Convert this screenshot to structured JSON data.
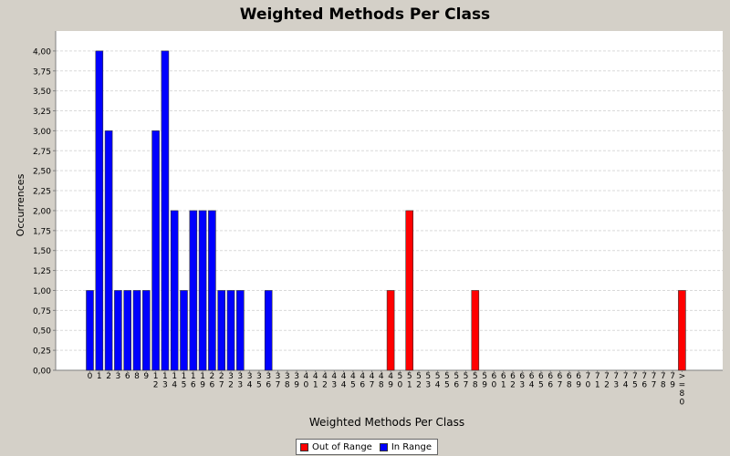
{
  "chart_data": {
    "type": "bar",
    "title": "Weighted Methods Per Class",
    "xlabel": "Weighted Methods Per Class",
    "ylabel": "Occurrences",
    "ylim": [
      0,
      4.25
    ],
    "yticks": [
      "0,00",
      "0,25",
      "0,50",
      "0,75",
      "1,00",
      "1,25",
      "1,50",
      "1,75",
      "2,00",
      "2,25",
      "2,50",
      "2,75",
      "3,00",
      "3,25",
      "3,50",
      "3,75",
      "4,00"
    ],
    "grid": true,
    "legend_position": "bottom",
    "categories": [
      "0",
      "1",
      "2",
      "3",
      "6",
      "8",
      "9",
      "12",
      "13",
      "14",
      "15",
      "16",
      "19",
      "26",
      "27",
      "32",
      "33",
      "34",
      "35",
      "36",
      "37",
      "38",
      "39",
      "40",
      "41",
      "42",
      "43",
      "44",
      "45",
      "46",
      "47",
      "48",
      "49",
      "50",
      "51",
      "52",
      "53",
      "54",
      "55",
      "56",
      "57",
      "58",
      "59",
      "60",
      "61",
      "62",
      "63",
      "64",
      "65",
      "66",
      "67",
      "68",
      "69",
      "70",
      "71",
      "72",
      "73",
      "74",
      "75",
      "76",
      "77",
      "78",
      "79",
      ">=80"
    ],
    "series": [
      {
        "name": "Out of Range",
        "color": "#ff0000",
        "values": [
          0,
          0,
          0,
          0,
          0,
          0,
          0,
          0,
          0,
          0,
          0,
          0,
          0,
          0,
          0,
          0,
          0,
          0,
          0,
          0,
          0,
          0,
          0,
          0,
          0,
          0,
          0,
          0,
          0,
          0,
          0,
          0,
          1,
          0,
          2,
          0,
          0,
          0,
          0,
          0,
          0,
          1,
          0,
          0,
          0,
          0,
          0,
          0,
          0,
          0,
          0,
          0,
          0,
          0,
          0,
          0,
          0,
          0,
          0,
          0,
          0,
          0,
          0,
          1
        ]
      },
      {
        "name": "In Range",
        "color": "#0000ff",
        "values": [
          1,
          4,
          3,
          1,
          1,
          1,
          1,
          3,
          4,
          2,
          1,
          2,
          2,
          2,
          1,
          1,
          1,
          0,
          0,
          1,
          0,
          0,
          0,
          0,
          0,
          0,
          0,
          0,
          0,
          0,
          0,
          0,
          0,
          0,
          0,
          0,
          0,
          0,
          0,
          0,
          0,
          0,
          0,
          0,
          0,
          0,
          0,
          0,
          0,
          0,
          0,
          0,
          0,
          0,
          0,
          0,
          0,
          0,
          0,
          0,
          0,
          0,
          0,
          0
        ]
      }
    ]
  },
  "legend": {
    "out_of_range": "Out of Range",
    "in_range": "In Range"
  }
}
